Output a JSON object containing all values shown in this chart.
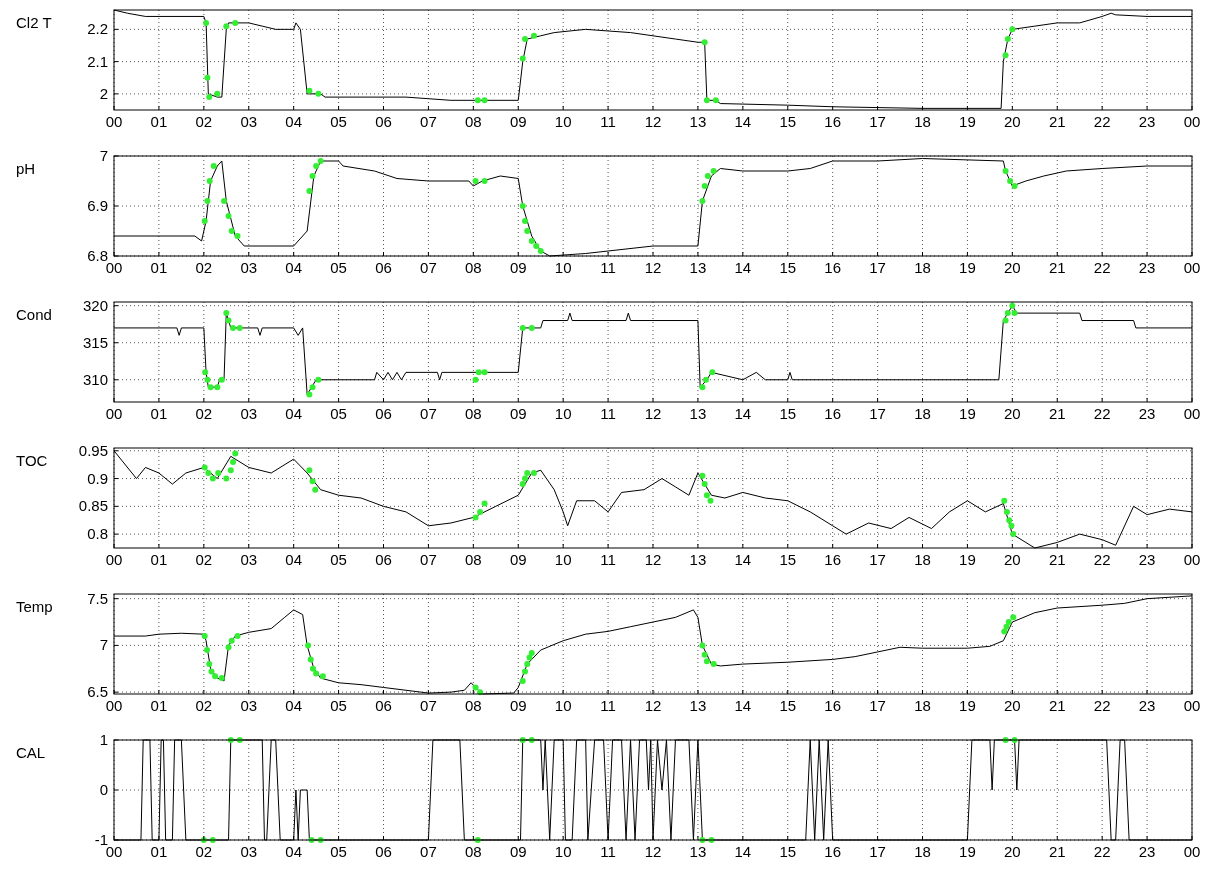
{
  "chart_data": [
    {
      "type": "line",
      "ylabel": "Cl2 T",
      "xlim": [
        0,
        24
      ],
      "ylim": [
        1.95,
        2.26
      ],
      "yticks": [
        2,
        2.1,
        2.2
      ],
      "grid": true,
      "marker": "none",
      "line_style": "solid",
      "xticks": [
        {
          "value": 0,
          "label": "00"
        },
        {
          "value": 1,
          "label": "01"
        },
        {
          "value": 2,
          "label": "02"
        },
        {
          "value": 3,
          "label": "03"
        },
        {
          "value": 4,
          "label": "04"
        },
        {
          "value": 5,
          "label": "05"
        },
        {
          "value": 6,
          "label": "06"
        },
        {
          "value": 7,
          "label": "07"
        },
        {
          "value": 8,
          "label": "08"
        },
        {
          "value": 9,
          "label": "09"
        },
        {
          "value": 10,
          "label": "10"
        },
        {
          "value": 11,
          "label": "11"
        },
        {
          "value": 12,
          "label": "12"
        },
        {
          "value": 13,
          "label": "13"
        },
        {
          "value": 14,
          "label": "14"
        },
        {
          "value": 15,
          "label": "15"
        },
        {
          "value": 16,
          "label": "16"
        },
        {
          "value": 17,
          "label": "17"
        },
        {
          "value": 18,
          "label": "18"
        },
        {
          "value": 19,
          "label": "19"
        },
        {
          "value": 20,
          "label": "20"
        },
        {
          "value": 21,
          "label": "21"
        },
        {
          "value": 22,
          "label": "22"
        },
        {
          "value": 23,
          "label": "23"
        },
        {
          "value": 24,
          "label": "00"
        }
      ],
      "series": [
        {
          "color": "#000000",
          "x": [
            0,
            0.3,
            0.7,
            2.0,
            2.05,
            2.1,
            2.3,
            2.4,
            2.5,
            2.55,
            3.0,
            3.3,
            3.6,
            4.0,
            4.05,
            4.15,
            4.3,
            4.6,
            4.7,
            6.5,
            7,
            7.5,
            9.0,
            9.1,
            9.2,
            9.5,
            9.8,
            10.5,
            11.5,
            12.0,
            12.5,
            13.0,
            13.15,
            13.2,
            13.4,
            13.5,
            15,
            16,
            18,
            19.75,
            19.8,
            19.9,
            20.0,
            20.5,
            21,
            21.5,
            22,
            22.2,
            22.3,
            23,
            24
          ],
          "values": [
            2.26,
            2.25,
            2.24,
            2.24,
            2.22,
            2.0,
            1.99,
            1.99,
            2.2,
            2.22,
            2.22,
            2.21,
            2.2,
            2.2,
            2.22,
            2.2,
            2.0,
            2.0,
            1.99,
            1.99,
            1.985,
            1.98,
            1.98,
            2.1,
            2.17,
            2.18,
            2.19,
            2.2,
            2.19,
            2.18,
            2.17,
            2.16,
            2.16,
            1.98,
            1.98,
            1.97,
            1.965,
            1.96,
            1.955,
            1.955,
            2.1,
            2.17,
            2.2,
            2.21,
            2.22,
            2.22,
            2.24,
            2.25,
            2.245,
            2.24,
            2.24
          ]
        },
        {
          "type": "scatter",
          "marker": "circle",
          "color": "#33ee33",
          "x": [
            2.05,
            2.08,
            2.12,
            2.3,
            2.5,
            2.7,
            4.35,
            4.55,
            8.1,
            8.25,
            9.1,
            9.15,
            9.35,
            13.15,
            13.2,
            13.4,
            19.85,
            19.9,
            20.0
          ],
          "values": [
            2.22,
            2.05,
            1.99,
            2.0,
            2.21,
            2.22,
            2.01,
            2.0,
            1.98,
            1.98,
            2.11,
            2.17,
            2.18,
            2.16,
            1.98,
            1.98,
            2.12,
            2.17,
            2.2
          ]
        }
      ]
    },
    {
      "type": "line",
      "ylabel": "pH",
      "xlim": [
        0,
        24
      ],
      "ylim": [
        6.8,
        7.0
      ],
      "yticks": [
        6.8,
        6.9,
        7
      ],
      "grid": true,
      "marker": "none",
      "line_style": "solid",
      "xticks": [
        {
          "value": 0,
          "label": "00"
        },
        {
          "value": 1,
          "label": "01"
        },
        {
          "value": 2,
          "label": "02"
        },
        {
          "value": 3,
          "label": "03"
        },
        {
          "value": 4,
          "label": "04"
        },
        {
          "value": 5,
          "label": "05"
        },
        {
          "value": 6,
          "label": "06"
        },
        {
          "value": 7,
          "label": "07"
        },
        {
          "value": 8,
          "label": "08"
        },
        {
          "value": 9,
          "label": "09"
        },
        {
          "value": 10,
          "label": "10"
        },
        {
          "value": 11,
          "label": "11"
        },
        {
          "value": 12,
          "label": "12"
        },
        {
          "value": 13,
          "label": "13"
        },
        {
          "value": 14,
          "label": "14"
        },
        {
          "value": 15,
          "label": "15"
        },
        {
          "value": 16,
          "label": "16"
        },
        {
          "value": 17,
          "label": "17"
        },
        {
          "value": 18,
          "label": "18"
        },
        {
          "value": 19,
          "label": "19"
        },
        {
          "value": 20,
          "label": "20"
        },
        {
          "value": 21,
          "label": "21"
        },
        {
          "value": 22,
          "label": "22"
        },
        {
          "value": 23,
          "label": "23"
        },
        {
          "value": 24,
          "label": "00"
        }
      ],
      "series": [
        {
          "color": "#000000",
          "x": [
            0,
            1.8,
            1.95,
            2.05,
            2.15,
            2.3,
            2.4,
            2.5,
            2.7,
            2.8,
            2.9,
            4.0,
            4.1,
            4.3,
            4.45,
            4.6,
            5.0,
            5.1,
            5.8,
            6.3,
            7.0,
            7.9,
            8.0,
            8.2,
            8.6,
            9.0,
            9.1,
            9.3,
            9.5,
            9.7,
            10.5,
            11.0,
            12.0,
            13.0,
            13.1,
            13.3,
            13.5,
            14,
            15,
            15.5,
            16,
            17,
            18,
            19.8,
            19.85,
            20.0,
            20.3,
            20.7,
            21.2,
            22,
            23,
            24
          ],
          "values": [
            6.84,
            6.84,
            6.83,
            6.87,
            6.95,
            6.98,
            6.99,
            6.91,
            6.84,
            6.83,
            6.82,
            6.82,
            6.83,
            6.85,
            6.96,
            6.99,
            6.99,
            6.98,
            6.97,
            6.955,
            6.95,
            6.95,
            6.94,
            6.95,
            6.96,
            6.955,
            6.9,
            6.84,
            6.81,
            6.8,
            6.805,
            6.81,
            6.82,
            6.82,
            6.91,
            6.96,
            6.975,
            6.97,
            6.97,
            6.975,
            6.99,
            6.99,
            6.995,
            6.99,
            6.97,
            6.94,
            6.95,
            6.96,
            6.97,
            6.975,
            6.98,
            6.98
          ]
        },
        {
          "type": "scatter",
          "marker": "circle",
          "color": "#33ee33",
          "x": [
            2.02,
            2.08,
            2.13,
            2.22,
            2.45,
            2.55,
            2.62,
            2.75,
            4.35,
            4.42,
            4.5,
            4.6,
            8.05,
            8.25,
            9.1,
            9.15,
            9.2,
            9.3,
            9.4,
            9.5,
            13.1,
            13.15,
            13.22,
            13.35,
            19.85,
            19.95,
            20.05
          ],
          "values": [
            6.87,
            6.91,
            6.95,
            6.98,
            6.91,
            6.88,
            6.85,
            6.84,
            6.93,
            6.96,
            6.98,
            6.99,
            6.95,
            6.95,
            6.9,
            6.87,
            6.85,
            6.83,
            6.82,
            6.81,
            6.91,
            6.94,
            6.96,
            6.97,
            6.97,
            6.95,
            6.94
          ]
        }
      ]
    },
    {
      "type": "line",
      "ylabel": "Cond",
      "xlim": [
        0,
        24
      ],
      "ylim": [
        307,
        320.5
      ],
      "yticks": [
        310,
        315,
        320
      ],
      "grid": true,
      "marker": "none",
      "line_style": "solid",
      "xticks": [
        {
          "value": 0,
          "label": "00"
        },
        {
          "value": 1,
          "label": "01"
        },
        {
          "value": 2,
          "label": "02"
        },
        {
          "value": 3,
          "label": "03"
        },
        {
          "value": 4,
          "label": "04"
        },
        {
          "value": 5,
          "label": "05"
        },
        {
          "value": 6,
          "label": "06"
        },
        {
          "value": 7,
          "label": "07"
        },
        {
          "value": 8,
          "label": "08"
        },
        {
          "value": 9,
          "label": "09"
        },
        {
          "value": 10,
          "label": "10"
        },
        {
          "value": 11,
          "label": "11"
        },
        {
          "value": 12,
          "label": "12"
        },
        {
          "value": 13,
          "label": "13"
        },
        {
          "value": 14,
          "label": "14"
        },
        {
          "value": 15,
          "label": "15"
        },
        {
          "value": 16,
          "label": "16"
        },
        {
          "value": 17,
          "label": "17"
        },
        {
          "value": 18,
          "label": "18"
        },
        {
          "value": 19,
          "label": "19"
        },
        {
          "value": 20,
          "label": "20"
        },
        {
          "value": 21,
          "label": "21"
        },
        {
          "value": 22,
          "label": "22"
        },
        {
          "value": 23,
          "label": "23"
        },
        {
          "value": 24,
          "label": "00"
        }
      ],
      "series": [
        {
          "color": "#000000",
          "x": [
            0,
            1.4,
            1.45,
            1.5,
            2.0,
            2.05,
            2.1,
            2.3,
            2.35,
            2.45,
            2.5,
            2.6,
            3.2,
            3.25,
            3.3,
            4.0,
            4.1,
            4.2,
            4.3,
            4.4,
            4.5,
            5.8,
            5.85,
            6.0,
            6.1,
            6.2,
            6.3,
            6.4,
            6.5,
            7.2,
            7.25,
            7.3,
            9.0,
            9.1,
            9.5,
            9.55,
            10.1,
            10.15,
            10.2,
            11.4,
            11.45,
            11.5,
            13.0,
            13.05,
            13.2,
            13.3,
            14.0,
            14.3,
            14.5,
            15.0,
            15.05,
            15.1,
            19.7,
            19.8,
            19.9,
            20.0,
            20.1,
            21.5,
            21.55,
            22.7,
            22.75,
            23.2,
            24
          ],
          "values": [
            317,
            317,
            316,
            317,
            317,
            311,
            309,
            309,
            310,
            310,
            319,
            317,
            317,
            316,
            317,
            317,
            316,
            317,
            308,
            309,
            310,
            310,
            311,
            310,
            311,
            310,
            311,
            310,
            311,
            311,
            310,
            311,
            311,
            317,
            317,
            318,
            318,
            319,
            318,
            318,
            319,
            318,
            318,
            309,
            310,
            311,
            310,
            311,
            310,
            310,
            311,
            310,
            310,
            318,
            319,
            320,
            319,
            319,
            318,
            318,
            317,
            317,
            317
          ]
        },
        {
          "type": "scatter",
          "marker": "circle",
          "color": "#33ee33",
          "x": [
            2.03,
            2.08,
            2.15,
            2.3,
            2.4,
            2.5,
            2.55,
            2.65,
            2.8,
            4.35,
            4.42,
            4.55,
            8.05,
            8.12,
            8.25,
            9.1,
            9.3,
            13.1,
            13.18,
            13.32,
            19.85,
            19.9,
            20.0,
            20.05
          ],
          "values": [
            311,
            310,
            309,
            309,
            310,
            319,
            318,
            317,
            317,
            308,
            309,
            310,
            310,
            311,
            311,
            317,
            317,
            309,
            310,
            311,
            318,
            319,
            320,
            319
          ]
        }
      ]
    },
    {
      "type": "line",
      "ylabel": "TOC",
      "xlim": [
        0,
        24
      ],
      "ylim": [
        0.775,
        0.955
      ],
      "yticks": [
        0.8,
        0.85,
        0.9,
        0.95
      ],
      "grid": true,
      "marker": "none",
      "line_style": "solid",
      "xticks": [
        {
          "value": 0,
          "label": "00"
        },
        {
          "value": 1,
          "label": "01"
        },
        {
          "value": 2,
          "label": "02"
        },
        {
          "value": 3,
          "label": "03"
        },
        {
          "value": 4,
          "label": "04"
        },
        {
          "value": 5,
          "label": "05"
        },
        {
          "value": 6,
          "label": "06"
        },
        {
          "value": 7,
          "label": "07"
        },
        {
          "value": 8,
          "label": "08"
        },
        {
          "value": 9,
          "label": "09"
        },
        {
          "value": 10,
          "label": "10"
        },
        {
          "value": 11,
          "label": "11"
        },
        {
          "value": 12,
          "label": "12"
        },
        {
          "value": 13,
          "label": "13"
        },
        {
          "value": 14,
          "label": "14"
        },
        {
          "value": 15,
          "label": "15"
        },
        {
          "value": 16,
          "label": "16"
        },
        {
          "value": 17,
          "label": "17"
        },
        {
          "value": 18,
          "label": "18"
        },
        {
          "value": 19,
          "label": "19"
        },
        {
          "value": 20,
          "label": "20"
        },
        {
          "value": 21,
          "label": "21"
        },
        {
          "value": 22,
          "label": "22"
        },
        {
          "value": 23,
          "label": "23"
        },
        {
          "value": 24,
          "label": "00"
        }
      ],
      "series": [
        {
          "color": "#000000",
          "x": [
            0,
            0.2,
            0.5,
            0.7,
            1.0,
            1.3,
            1.6,
            2.0,
            2.3,
            2.6,
            3.0,
            3.5,
            4.0,
            4.3,
            4.6,
            5.0,
            5.5,
            6.0,
            6.5,
            7.0,
            7.5,
            8.0,
            8.5,
            9.0,
            9.3,
            9.5,
            9.8,
            10.0,
            10.1,
            10.3,
            10.7,
            11.0,
            11.3,
            11.8,
            12.2,
            12.5,
            12.8,
            13.0,
            13.3,
            13.6,
            14.0,
            14.5,
            15,
            15.5,
            16.0,
            16.3,
            16.8,
            17.3,
            17.7,
            18.2,
            18.6,
            19.0,
            19.4,
            19.8,
            20.0,
            20.5,
            21.0,
            21.5,
            22.0,
            22.3,
            22.7,
            23.0,
            23.5,
            24
          ],
          "values": [
            0.95,
            0.93,
            0.9,
            0.92,
            0.91,
            0.89,
            0.91,
            0.92,
            0.9,
            0.94,
            0.92,
            0.91,
            0.935,
            0.91,
            0.88,
            0.87,
            0.865,
            0.85,
            0.84,
            0.815,
            0.82,
            0.83,
            0.85,
            0.87,
            0.91,
            0.915,
            0.88,
            0.84,
            0.815,
            0.86,
            0.86,
            0.84,
            0.875,
            0.88,
            0.9,
            0.885,
            0.87,
            0.91,
            0.87,
            0.865,
            0.875,
            0.865,
            0.86,
            0.84,
            0.815,
            0.8,
            0.82,
            0.81,
            0.83,
            0.81,
            0.84,
            0.86,
            0.84,
            0.855,
            0.8,
            0.775,
            0.785,
            0.8,
            0.79,
            0.78,
            0.85,
            0.835,
            0.845,
            0.84
          ]
        },
        {
          "type": "scatter",
          "marker": "circle",
          "color": "#33ee33",
          "x": [
            2.02,
            2.1,
            2.2,
            2.32,
            2.5,
            2.6,
            2.65,
            2.7,
            4.35,
            4.42,
            4.48,
            8.05,
            8.15,
            8.25,
            9.1,
            9.15,
            9.2,
            9.35,
            13.1,
            13.15,
            13.2,
            13.28,
            19.82,
            19.88,
            19.93,
            19.98,
            20.02
          ],
          "values": [
            0.92,
            0.91,
            0.9,
            0.91,
            0.9,
            0.915,
            0.93,
            0.945,
            0.915,
            0.895,
            0.88,
            0.83,
            0.84,
            0.855,
            0.89,
            0.9,
            0.91,
            0.91,
            0.905,
            0.89,
            0.87,
            0.86,
            0.86,
            0.84,
            0.825,
            0.815,
            0.8
          ]
        }
      ]
    },
    {
      "type": "line",
      "ylabel": "Temp",
      "xlim": [
        0,
        24
      ],
      "ylim": [
        6.48,
        7.55
      ],
      "yticks": [
        6.5,
        7,
        7.5
      ],
      "grid": true,
      "marker": "none",
      "line_style": "solid",
      "xticks": [
        {
          "value": 0,
          "label": "00"
        },
        {
          "value": 1,
          "label": "01"
        },
        {
          "value": 2,
          "label": "02"
        },
        {
          "value": 3,
          "label": "03"
        },
        {
          "value": 4,
          "label": "04"
        },
        {
          "value": 5,
          "label": "05"
        },
        {
          "value": 6,
          "label": "06"
        },
        {
          "value": 7,
          "label": "07"
        },
        {
          "value": 8,
          "label": "08"
        },
        {
          "value": 9,
          "label": "09"
        },
        {
          "value": 10,
          "label": "10"
        },
        {
          "value": 11,
          "label": "11"
        },
        {
          "value": 12,
          "label": "12"
        },
        {
          "value": 13,
          "label": "13"
        },
        {
          "value": 14,
          "label": "14"
        },
        {
          "value": 15,
          "label": "15"
        },
        {
          "value": 16,
          "label": "16"
        },
        {
          "value": 17,
          "label": "17"
        },
        {
          "value": 18,
          "label": "18"
        },
        {
          "value": 19,
          "label": "19"
        },
        {
          "value": 20,
          "label": "20"
        },
        {
          "value": 21,
          "label": "21"
        },
        {
          "value": 22,
          "label": "22"
        },
        {
          "value": 23,
          "label": "23"
        },
        {
          "value": 24,
          "label": "00"
        }
      ],
      "series": [
        {
          "color": "#000000",
          "x": [
            0,
            0.7,
            1.0,
            1.5,
            2.0,
            2.05,
            2.15,
            2.3,
            2.45,
            2.55,
            2.7,
            3.0,
            3.5,
            3.8,
            4.0,
            4.2,
            4.3,
            4.45,
            4.6,
            5.0,
            5.5,
            6.0,
            6.5,
            7.0,
            7.5,
            7.8,
            7.95,
            8.05,
            8.2,
            8.9,
            9.0,
            9.2,
            9.5,
            10.0,
            10.5,
            11.0,
            11.5,
            12.0,
            12.5,
            12.9,
            13.0,
            13.1,
            13.3,
            13.5,
            14,
            15,
            16,
            16.5,
            17,
            17.5,
            18,
            19,
            19.5,
            19.8,
            20.0,
            20.5,
            21,
            22,
            22.5,
            23,
            24
          ],
          "values": [
            7.1,
            7.1,
            7.12,
            7.13,
            7.12,
            7.05,
            6.75,
            6.65,
            6.62,
            7.0,
            7.1,
            7.14,
            7.18,
            7.3,
            7.38,
            7.33,
            7.0,
            6.75,
            6.65,
            6.6,
            6.58,
            6.55,
            6.52,
            6.49,
            6.5,
            6.52,
            6.6,
            6.55,
            6.48,
            6.49,
            6.55,
            6.8,
            6.95,
            7.05,
            7.12,
            7.15,
            7.2,
            7.25,
            7.3,
            7.38,
            7.3,
            7.0,
            6.8,
            6.78,
            6.8,
            6.82,
            6.85,
            6.88,
            6.93,
            6.98,
            6.97,
            6.97,
            6.99,
            7.05,
            7.25,
            7.35,
            7.4,
            7.43,
            7.45,
            7.5,
            7.53
          ]
        },
        {
          "type": "scatter",
          "marker": "circle",
          "color": "#33ee33",
          "x": [
            2.02,
            2.07,
            2.12,
            2.17,
            2.25,
            2.4,
            2.55,
            2.62,
            2.75,
            4.32,
            4.38,
            4.43,
            4.5,
            4.65,
            8.05,
            8.15,
            9.1,
            9.15,
            9.2,
            9.25,
            9.3,
            13.1,
            13.15,
            13.2,
            13.35,
            19.82,
            19.87,
            19.92,
            20.02
          ],
          "values": [
            7.1,
            6.95,
            6.8,
            6.72,
            6.67,
            6.65,
            6.98,
            7.05,
            7.1,
            7.0,
            6.85,
            6.75,
            6.7,
            6.67,
            6.55,
            6.5,
            6.62,
            6.72,
            6.8,
            6.87,
            6.92,
            7.0,
            6.9,
            6.83,
            6.8,
            7.15,
            7.2,
            7.25,
            7.3
          ]
        }
      ]
    },
    {
      "type": "line",
      "ylabel": "CAL",
      "xlim": [
        0,
        24
      ],
      "ylim": [
        -1,
        1
      ],
      "yticks": [
        -1,
        0,
        1
      ],
      "grid": true,
      "marker": "none",
      "line_style": "solid",
      "xticks": [
        {
          "value": 0,
          "label": "00"
        },
        {
          "value": 1,
          "label": "01"
        },
        {
          "value": 2,
          "label": "02"
        },
        {
          "value": 3,
          "label": "03"
        },
        {
          "value": 4,
          "label": "04"
        },
        {
          "value": 5,
          "label": "05"
        },
        {
          "value": 6,
          "label": "06"
        },
        {
          "value": 7,
          "label": "07"
        },
        {
          "value": 8,
          "label": "08"
        },
        {
          "value": 9,
          "label": "09"
        },
        {
          "value": 10,
          "label": "10"
        },
        {
          "value": 11,
          "label": "11"
        },
        {
          "value": 12,
          "label": "12"
        },
        {
          "value": 13,
          "label": "13"
        },
        {
          "value": 14,
          "label": "14"
        },
        {
          "value": 15,
          "label": "15"
        },
        {
          "value": 16,
          "label": "16"
        },
        {
          "value": 17,
          "label": "17"
        },
        {
          "value": 18,
          "label": "18"
        },
        {
          "value": 19,
          "label": "19"
        },
        {
          "value": 20,
          "label": "20"
        },
        {
          "value": 21,
          "label": "21"
        },
        {
          "value": 22,
          "label": "22"
        },
        {
          "value": 23,
          "label": "23"
        },
        {
          "value": 24,
          "label": "00"
        }
      ],
      "series": [
        {
          "color": "#000000",
          "x": [
            0,
            0.6,
            0.65,
            0.8,
            0.85,
            1.0,
            1.05,
            1.1,
            1.15,
            1.3,
            1.35,
            1.5,
            1.6,
            2.55,
            2.6,
            3.3,
            3.35,
            3.4,
            3.5,
            3.6,
            3.7,
            4.0,
            4.05,
            4.1,
            4.15,
            4.3,
            4.35,
            7.0,
            7.1,
            7.7,
            7.8,
            9.05,
            9.1,
            9.5,
            9.55,
            9.6,
            9.7,
            9.8,
            10.0,
            10.05,
            10.2,
            10.3,
            10.5,
            10.55,
            10.7,
            10.9,
            11.0,
            11.1,
            11.3,
            11.4,
            11.5,
            11.6,
            11.7,
            11.85,
            11.9,
            11.95,
            12.0,
            12.1,
            12.2,
            12.3,
            12.4,
            12.5,
            12.8,
            12.9,
            13.0,
            13.1,
            15.4,
            15.5,
            15.6,
            15.7,
            15.8,
            15.9,
            16.0,
            19.0,
            19.1,
            19.5,
            19.55,
            19.6,
            20.05,
            20.1,
            20.15,
            22.1,
            22.2,
            22.3,
            22.4,
            22.5,
            22.6,
            24
          ],
          "values": [
            -1,
            -1,
            1,
            1,
            -1,
            -1,
            1,
            1,
            -1,
            -1,
            1,
            1,
            -1,
            -1,
            1,
            1,
            -1,
            -1,
            1,
            1,
            -1,
            -1,
            0,
            -1,
            0,
            0,
            -1,
            -1,
            1,
            1,
            -1,
            -1,
            1,
            1,
            0,
            1,
            -1,
            1,
            1,
            -1,
            -1,
            1,
            1,
            -1,
            1,
            1,
            -1,
            1,
            1,
            -1,
            1,
            -1,
            1,
            1,
            0,
            1,
            -1,
            1,
            0,
            1,
            -1,
            1,
            1,
            -1,
            1,
            -1,
            -1,
            1,
            -1,
            1,
            -1,
            1,
            -1,
            -1,
            1,
            1,
            0,
            1,
            1,
            0,
            1,
            1,
            -1,
            -1,
            1,
            1,
            -1,
            -1
          ]
        },
        {
          "type": "scatter",
          "marker": "circle",
          "color": "#33ee33",
          "x": [
            2.0,
            2.2,
            2.6,
            2.8,
            4.4,
            4.6,
            8.1,
            9.1,
            9.3,
            13.1,
            13.3,
            19.85,
            20.05
          ],
          "values": [
            -1,
            -1,
            1,
            1,
            -1,
            -1,
            -1,
            1,
            1,
            -1,
            -1,
            1,
            1
          ]
        }
      ]
    }
  ]
}
